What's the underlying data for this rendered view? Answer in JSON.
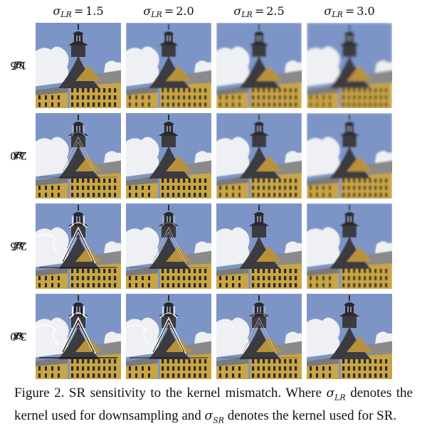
{
  "figure": {
    "column_headers": [
      {
        "symbol": "σ",
        "sub": "LR",
        "value": "1.5"
      },
      {
        "symbol": "σ",
        "sub": "LR",
        "value": "2.0"
      },
      {
        "symbol": "σ",
        "sub": "LR",
        "value": "2.5"
      },
      {
        "symbol": "σ",
        "sub": "LR",
        "value": "3.0"
      }
    ],
    "row_headers": [
      {
        "symbol": "σ",
        "sub": "SR",
        "value": "1.5"
      },
      {
        "symbol": "σ",
        "sub": "SR",
        "value": "2.0"
      },
      {
        "symbol": "σ",
        "sub": "SR",
        "value": "2.5"
      },
      {
        "symbol": "σ",
        "sub": "SR",
        "value": "3.0"
      }
    ],
    "sky_color": "#7d95c6",
    "roof_color": "#3a3b3f",
    "wall_color": "#c9a544",
    "cloud_color": "#eef0f3"
  },
  "caption": {
    "part1": "Figure 2. SR sensitivity to the kernel mismatch. Where ",
    "sym1": "σ",
    "sub1": "LR",
    "part2": " denotes the kernel used for downsampling and ",
    "sym2": "σ",
    "sub2": "SR",
    "part3": " denotes the kernel used for SR."
  }
}
